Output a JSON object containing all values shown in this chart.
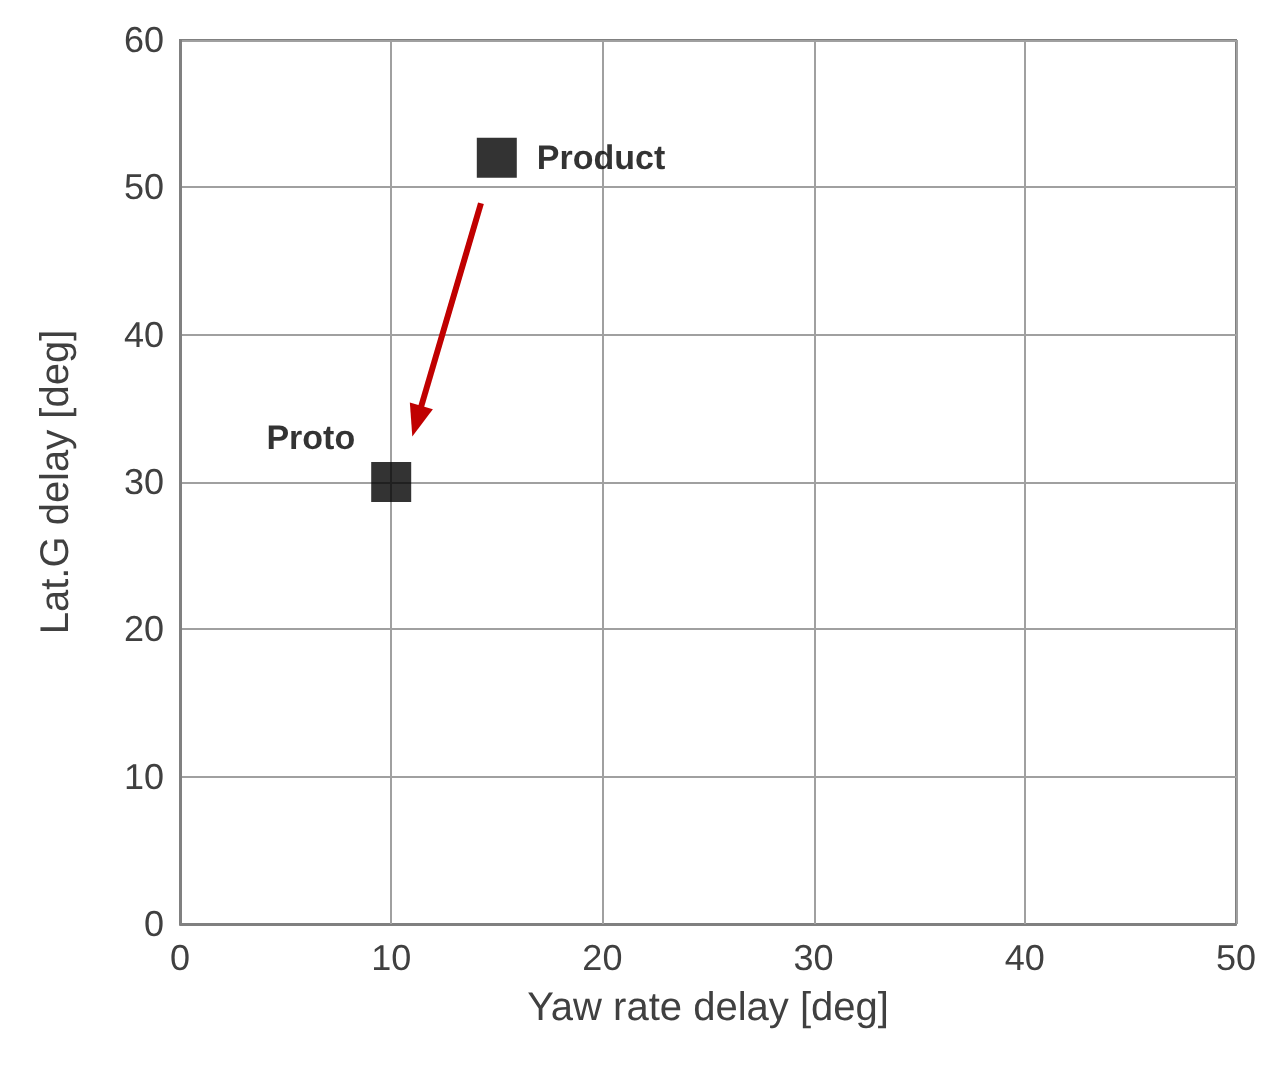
{
  "chart_data": {
    "type": "scatter",
    "xlabel": "Yaw rate delay [deg]",
    "ylabel": "Lat.G delay [deg]",
    "x": [
      15,
      10
    ],
    "values": [
      52,
      30
    ],
    "color": "#000000",
    "marker": "square",
    "xlim": [
      0,
      50
    ],
    "xticks": [
      0,
      10,
      20,
      30,
      40,
      50
    ],
    "ylim": [
      0,
      60
    ],
    "yticks": [
      0,
      10,
      20,
      30,
      40,
      50,
      60
    ],
    "grid": true,
    "annotations": [
      {
        "text": "Product",
        "x": 15,
        "y": 52
      },
      {
        "text": "Proto",
        "x": 10,
        "y": 30
      }
    ]
  }
}
